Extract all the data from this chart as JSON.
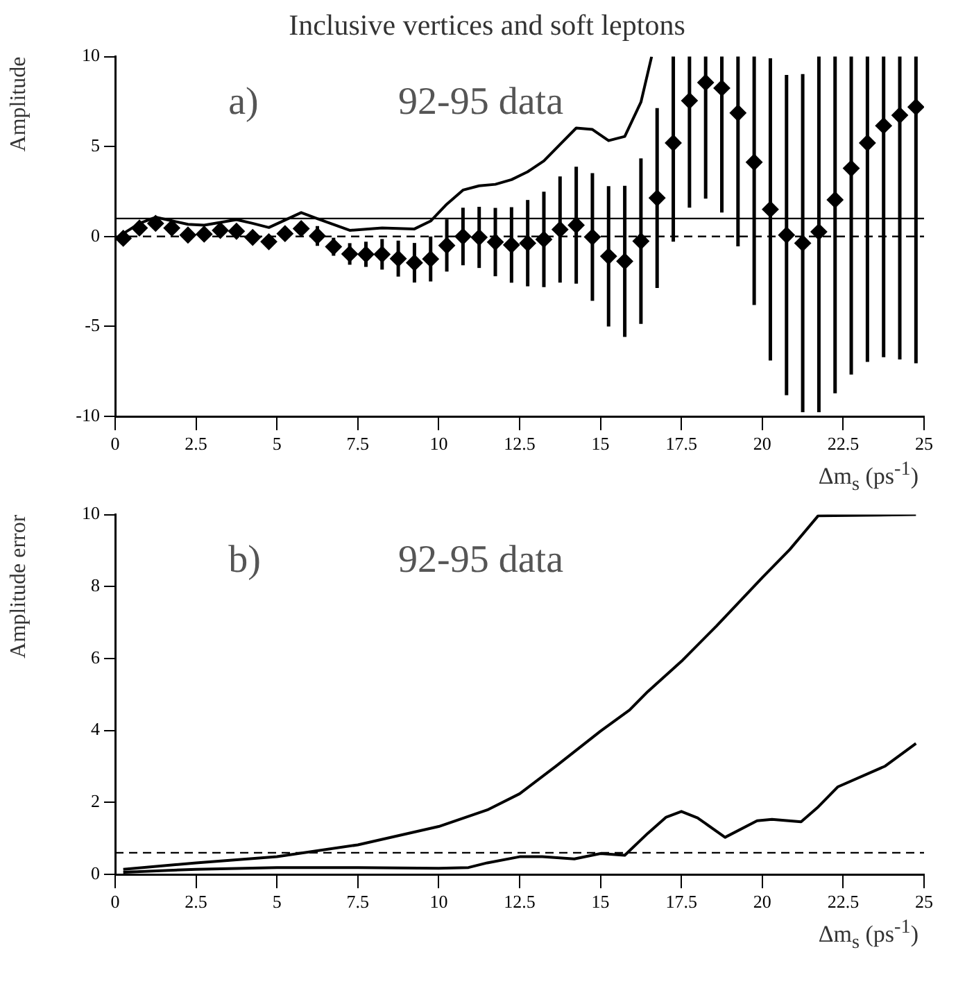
{
  "chart_data": [
    {
      "type": "scatter",
      "title": "Inclusive vertices and soft leptons",
      "ylabel": "Amplitude",
      "xlabel": "Δm$_{s}$ (ps$^{-1}$)",
      "annotations": [
        "a)",
        "92-95 data"
      ],
      "xlim": [
        0,
        25
      ],
      "xticks": [
        0,
        2.5,
        5,
        7.5,
        10,
        12.5,
        15,
        17.5,
        20,
        22.5,
        25
      ],
      "ylim": [
        -10,
        10
      ],
      "yticks": [
        -10,
        -5,
        0,
        5,
        10
      ],
      "grid": false,
      "legend": false,
      "marker": "diamond",
      "ref_lines": [
        {
          "axis": "y",
          "value": 1,
          "line_style": "solid",
          "color": "#000000"
        },
        {
          "axis": "y",
          "value": 0,
          "line_style": "dashed",
          "color": "#000000"
        }
      ],
      "series": [
        {
          "type": "scatter",
          "color": "#000000",
          "x": [
            0.25,
            0.75,
            1.25,
            1.75,
            2.25,
            2.75,
            3.25,
            3.75,
            4.25,
            4.75,
            5.25,
            5.75,
            6.25,
            6.75,
            7.25,
            7.75,
            8.25,
            8.75,
            9.25,
            9.75,
            10.25,
            10.75,
            11.25,
            11.75,
            12.25,
            12.75,
            13.25,
            13.75,
            14.25,
            14.75,
            15.25,
            15.75,
            16.25,
            16.75,
            17.25,
            17.75,
            18.25,
            18.75,
            19.25,
            19.75,
            20.25,
            20.75,
            21.25,
            21.75,
            22.25,
            22.75,
            23.25,
            23.75,
            24.25,
            24.75
          ],
          "values": [
            -0.1,
            0.47,
            0.73,
            0.47,
            0.08,
            0.13,
            0.34,
            0.29,
            -0.05,
            -0.29,
            0.16,
            0.44,
            0.03,
            -0.57,
            -0.97,
            -0.99,
            -0.99,
            -1.23,
            -1.46,
            -1.25,
            -0.5,
            0.0,
            -0.05,
            -0.31,
            -0.47,
            -0.37,
            -0.16,
            0.39,
            0.63,
            -0.03,
            -1.1,
            -1.38,
            -0.26,
            2.14,
            5.2,
            7.55,
            8.56,
            8.25,
            6.87,
            4.13,
            1.51,
            0.08,
            -0.37,
            0.26,
            2.04,
            3.79,
            5.2,
            6.16,
            6.74,
            7.2
          ],
          "errors": [
            null,
            null,
            null,
            null,
            null,
            null,
            null,
            null,
            null,
            null,
            null,
            null,
            0.55,
            0.5,
            0.6,
            0.7,
            0.85,
            1.0,
            1.1,
            1.25,
            1.45,
            1.6,
            1.7,
            1.9,
            2.1,
            2.4,
            2.65,
            2.95,
            3.25,
            3.55,
            3.9,
            4.2,
            4.6,
            5.0,
            [
              -0.29,
              10
            ],
            [
              1.6,
              10
            ],
            [
              2.1,
              10
            ],
            [
              1.33,
              10
            ],
            [
              -0.55,
              10
            ],
            [
              -3.81,
              10
            ],
            8.4,
            8.9,
            9.4,
            [
              -9.77,
              10
            ],
            [
              -8.72,
              10
            ],
            [
              -7.68,
              10
            ],
            [
              -6.97,
              10
            ],
            [
              -6.71,
              10
            ],
            [
              -6.84,
              10
            ],
            [
              -7.05,
              10
            ]
          ]
        },
        {
          "type": "line",
          "color": "#000000",
          "marker": "none",
          "x": [
            0.25,
            0.75,
            1.25,
            2.25,
            2.75,
            3.75,
            4.25,
            4.75,
            5.75,
            6.25,
            7.25,
            8.25,
            9.25,
            9.75,
            10.25,
            10.75,
            11.25,
            11.75,
            12.25,
            12.75,
            13.25,
            13.75,
            14.25,
            14.75,
            15.25,
            15.75,
            16.25,
            16.58
          ],
          "values": [
            0.16,
            0.73,
            1.07,
            0.68,
            0.63,
            0.94,
            0.73,
            0.5,
            1.33,
            0.99,
            0.34,
            0.47,
            0.42,
            0.86,
            1.8,
            2.58,
            2.82,
            2.9,
            3.16,
            3.6,
            4.2,
            5.12,
            6.03,
            5.95,
            5.33,
            5.56,
            7.47,
            10
          ]
        }
      ]
    },
    {
      "type": "line",
      "ylabel": "Amplitude error",
      "xlabel": "Δm$_{s}$ (ps$^{-1}$)",
      "annotations": [
        "b)",
        "92-95 data"
      ],
      "xlim": [
        0,
        25
      ],
      "xticks": [
        0,
        2.5,
        5,
        7.5,
        10,
        12.5,
        15,
        17.5,
        20,
        22.5,
        25
      ],
      "ylim": [
        0,
        10
      ],
      "yticks": [
        0,
        2,
        4,
        6,
        8,
        10
      ],
      "grid": false,
      "legend": false,
      "marker": "none",
      "ref_lines": [
        {
          "axis": "y",
          "value": 0.6,
          "line_style": "dashed",
          "color": "#000000"
        }
      ],
      "series": [
        {
          "color": "#000000",
          "x": [
            0.25,
            2.5,
            5,
            7.5,
            10,
            11.5,
            12.5,
            13.63,
            15,
            15.9,
            16.46,
            17.5,
            18.58,
            20,
            20.85,
            21.73,
            24.75
          ],
          "values": [
            0.14,
            0.32,
            0.49,
            0.82,
            1.33,
            1.79,
            2.24,
            3.01,
            3.98,
            4.57,
            5.08,
            5.92,
            6.9,
            8.25,
            9.03,
            9.97,
            10
          ]
        },
        {
          "color": "#000000",
          "x": [
            0.25,
            2.5,
            5,
            7.5,
            10,
            10.92,
            11.5,
            12.5,
            13.2,
            14.19,
            15,
            15.75,
            16.46,
            17.03,
            17.5,
            18.0,
            18.85,
            19.84,
            20.3,
            21.2,
            21.7,
            22.33,
            23.8,
            24.75
          ],
          "values": [
            0.06,
            0.14,
            0.19,
            0.19,
            0.17,
            0.19,
            0.32,
            0.49,
            0.49,
            0.43,
            0.58,
            0.53,
            1.14,
            1.59,
            1.75,
            1.57,
            1.03,
            1.49,
            1.53,
            1.46,
            1.85,
            2.43,
            3.01,
            3.64
          ]
        }
      ]
    }
  ]
}
